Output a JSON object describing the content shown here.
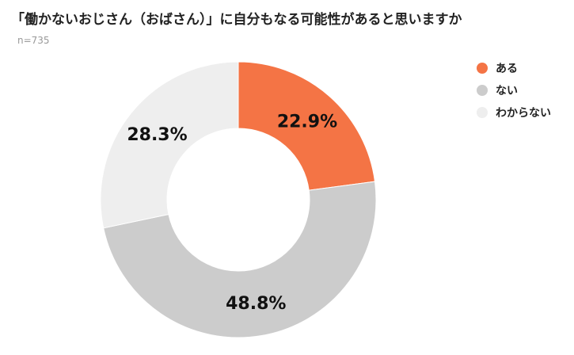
{
  "chart_data": {
    "type": "pie",
    "title": "「働かないおじさん（おばさん）」に自分もなる可能性があると思いますか",
    "subtitle": "n=735",
    "donut": true,
    "legend_position": "top-right",
    "slices": [
      {
        "label": "ある",
        "value": 22.9,
        "display": "22.9%",
        "color": "#F47445"
      },
      {
        "label": "ない",
        "value": 48.8,
        "display": "48.8%",
        "color": "#CCCCCC"
      },
      {
        "label": "わからない",
        "value": 28.3,
        "display": "28.3%",
        "color": "#EEEEEE"
      }
    ]
  }
}
